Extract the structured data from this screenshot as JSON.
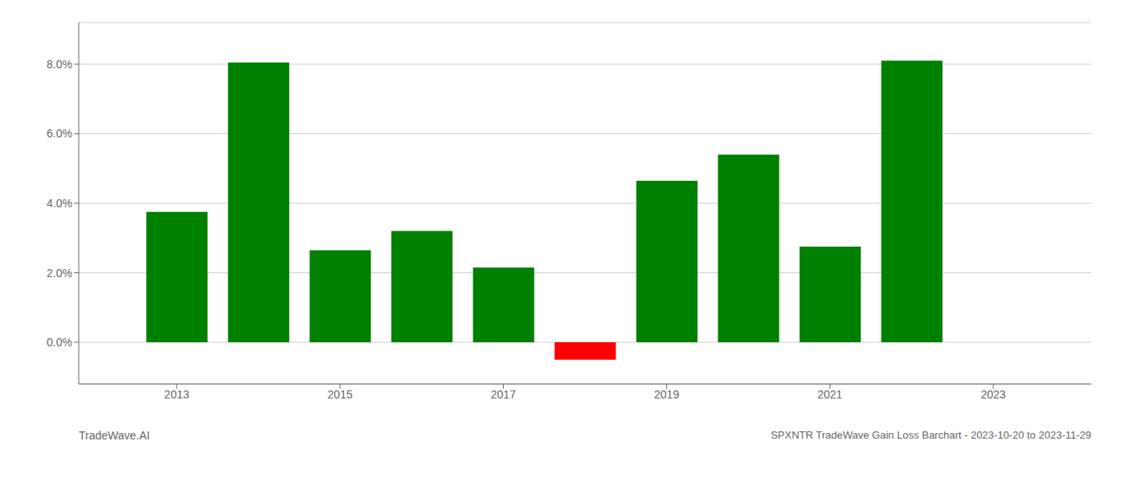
{
  "chart_data": {
    "type": "bar",
    "title": "SPXNTR TradeWave Gain Loss Barchart - 2023-10-20 to 2023-11-29",
    "annotations": [
      "TradeWave.AI"
    ],
    "x": [
      2013,
      2014,
      2015,
      2016,
      2017,
      2018,
      2019,
      2020,
      2021,
      2022,
      2023
    ],
    "values": [
      0.0375,
      0.0805,
      0.0265,
      0.032,
      0.0215,
      -0.005,
      0.0465,
      0.054,
      0.0275,
      0.081,
      0.0
    ],
    "colors": [
      "#008000",
      "#008000",
      "#008000",
      "#008000",
      "#008000",
      "#ff0000",
      "#008000",
      "#008000",
      "#008000",
      "#008000",
      "#008000"
    ],
    "xlim": [
      2011.8,
      2024.2
    ],
    "xticks": [
      2013,
      2015,
      2017,
      2019,
      2021,
      2023
    ],
    "ylim": [
      -0.012,
      0.092
    ],
    "yticks": [
      {
        "value": 0.0,
        "label": "0.0%"
      },
      {
        "value": 0.02,
        "label": "2.0%"
      },
      {
        "value": 0.04,
        "label": "4.0%"
      },
      {
        "value": 0.06,
        "label": "6.0%"
      },
      {
        "value": 0.08,
        "label": "8.0%"
      }
    ],
    "grid": true
  }
}
